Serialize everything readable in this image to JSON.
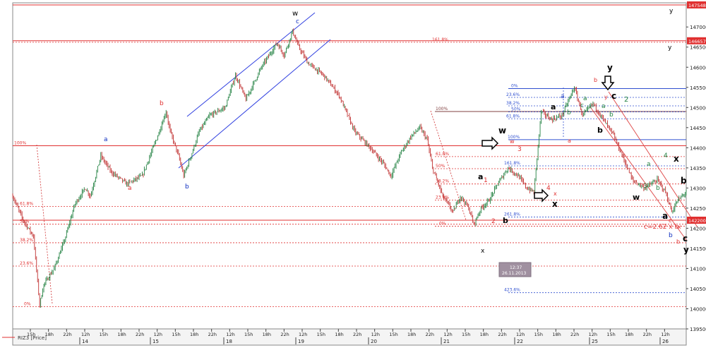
{
  "window": {
    "instrument_label": "RIZ3 [Price]"
  },
  "chart_data": {
    "type": "candlestick",
    "title": "",
    "xlabel": "",
    "ylabel": "",
    "ylim": [
      139500,
      147600
    ],
    "grid": false,
    "legend": "bottom-left",
    "price_axis_ticks": [
      139500,
      140000,
      140500,
      141000,
      141500,
      142000,
      142500,
      143000,
      143500,
      144000,
      144500,
      145000,
      145500,
      146000,
      146500,
      147000
    ],
    "highlighted_prices": [
      {
        "label": "147548",
        "value": 147548,
        "color": "#e03030"
      },
      {
        "label": "146657",
        "value": 146657,
        "color": "#e03030"
      },
      {
        "label": "142200",
        "value": 142200,
        "color": "#e03030"
      }
    ],
    "time_axis_hours": [
      "15h",
      "18h",
      "22h",
      "12h",
      "15h",
      "18h",
      "22h",
      "12h",
      "15h",
      "18h",
      "22h",
      "12h",
      "15h",
      "18h",
      "22h",
      "12h",
      "15h",
      "18h",
      "22h",
      "12h",
      "15h",
      "18h",
      "22h",
      "12h",
      "15h",
      "18h",
      "22h",
      "12h",
      "15h",
      "18h",
      "22h",
      "12h",
      "15h",
      "18h",
      "22h",
      "12h"
    ],
    "time_axis_days": [
      "14",
      "15",
      "18",
      "19",
      "20",
      "21",
      "22",
      "25",
      "26"
    ],
    "cursor_box": {
      "time": "12:37",
      "date": "26.11.2013"
    },
    "price_path": [
      [
        0,
        142800
      ],
      [
        10,
        142200
      ],
      [
        20,
        141800
      ],
      [
        26,
        140100
      ],
      [
        30,
        140600
      ],
      [
        40,
        141000
      ],
      [
        50,
        141700
      ],
      [
        60,
        142600
      ],
      [
        70,
        143000
      ],
      [
        75,
        142800
      ],
      [
        85,
        143800
      ],
      [
        95,
        143400
      ],
      [
        110,
        143100
      ],
      [
        125,
        143300
      ],
      [
        140,
        144300
      ],
      [
        148,
        144900
      ],
      [
        152,
        144400
      ],
      [
        160,
        143800
      ],
      [
        165,
        143300
      ],
      [
        172,
        143800
      ],
      [
        180,
        144400
      ],
      [
        190,
        144800
      ],
      [
        205,
        145000
      ],
      [
        215,
        145800
      ],
      [
        225,
        145200
      ],
      [
        240,
        146000
      ],
      [
        255,
        146600
      ],
      [
        262,
        146300
      ],
      [
        270,
        146900
      ],
      [
        276,
        146500
      ],
      [
        285,
        146100
      ],
      [
        300,
        145800
      ],
      [
        315,
        145300
      ],
      [
        330,
        144400
      ],
      [
        345,
        144000
      ],
      [
        358,
        143600
      ],
      [
        365,
        143300
      ],
      [
        375,
        143900
      ],
      [
        385,
        144300
      ],
      [
        393,
        144500
      ],
      [
        400,
        144200
      ],
      [
        405,
        143500
      ],
      [
        415,
        142800
      ],
      [
        425,
        142400
      ],
      [
        432,
        142800
      ],
      [
        440,
        142500
      ],
      [
        445,
        142100
      ],
      [
        452,
        142500
      ],
      [
        460,
        142700
      ],
      [
        468,
        143100
      ],
      [
        478,
        143500
      ],
      [
        488,
        143300
      ],
      [
        496,
        143000
      ],
      [
        503,
        142900
      ],
      [
        510,
        144900
      ],
      [
        520,
        144700
      ],
      [
        530,
        144800
      ],
      [
        542,
        145500
      ],
      [
        550,
        144800
      ],
      [
        560,
        145100
      ],
      [
        570,
        144700
      ],
      [
        580,
        144300
      ],
      [
        590,
        143700
      ],
      [
        598,
        143200
      ],
      [
        610,
        143000
      ],
      [
        622,
        143200
      ],
      [
        630,
        142900
      ],
      [
        636,
        142400
      ],
      [
        642,
        142700
      ],
      [
        650,
        142900
      ]
    ],
    "fib_levels": [
      {
        "label": "161.8%",
        "value": 146620,
        "color": "#e03030"
      },
      {
        "label": "100%",
        "value": 144050,
        "color": "#e03030"
      },
      {
        "label": "61.8%",
        "value": 142540,
        "color": "#e03030"
      },
      {
        "label": "50%",
        "value": 142100,
        "color": "#e03030"
      },
      {
        "label": "38.2%",
        "value": 141640,
        "color": "#e03030"
      },
      {
        "label": "23.6%",
        "value": 141060,
        "color": "#e03030"
      },
      {
        "label": "0%",
        "value": 140050,
        "color": "#e03030"
      },
      {
        "label": "100%",
        "value": 144900,
        "color": "#804040"
      },
      {
        "label": "61.8%",
        "value": 143780,
        "color": "#e03030"
      },
      {
        "label": "50%",
        "value": 143480,
        "color": "#e03030"
      },
      {
        "label": "38.2%",
        "value": 143100,
        "color": "#e03030"
      },
      {
        "label": "23.6%",
        "value": 142700,
        "color": "#e03030"
      },
      {
        "label": "0%",
        "value": 142050,
        "color": "#e03030"
      },
      {
        "label": "0%",
        "value": 145470,
        "color": "#3050d0"
      },
      {
        "label": "23.6%",
        "value": 145250,
        "color": "#3050d0"
      },
      {
        "label": "38.2%",
        "value": 145040,
        "color": "#3050d0"
      },
      {
        "label": "50%",
        "value": 144890,
        "color": "#3050d0"
      },
      {
        "label": "61.8%",
        "value": 144720,
        "color": "#3050d0"
      },
      {
        "label": "100%",
        "value": 144200,
        "color": "#3050d0"
      },
      {
        "label": "161.8%",
        "value": 143550,
        "color": "#3050d0"
      },
      {
        "label": "261.8%",
        "value": 142280,
        "color": "#3050d0"
      },
      {
        "label": "423.6%",
        "value": 140400,
        "color": "#3050d0"
      }
    ],
    "annotations": [
      {
        "text": "w",
        "color": "#000000"
      },
      {
        "text": "c",
        "color": "#1030c0"
      },
      {
        "text": "b",
        "color": "#e03030"
      },
      {
        "text": "a",
        "color": "#1030c0"
      },
      {
        "text": "a",
        "color": "#e03030"
      },
      {
        "text": "b",
        "color": "#1030c0"
      },
      {
        "text": "x",
        "color": "#000000"
      },
      {
        "text": "1",
        "color": "#e03030"
      },
      {
        "text": "2",
        "color": "#e03030"
      },
      {
        "text": "3",
        "color": "#e03030"
      },
      {
        "text": "4",
        "color": "#e03030"
      },
      {
        "text": "a",
        "color": "#000000"
      },
      {
        "text": "b",
        "color": "#000000"
      },
      {
        "text": "w",
        "color": "#000000"
      },
      {
        "text": "w",
        "color": "#e03030"
      },
      {
        "text": "x",
        "color": "#000000"
      },
      {
        "text": "x",
        "color": "#e03030"
      },
      {
        "text": "a",
        "color": "#000000"
      },
      {
        "text": "b",
        "color": "#000000"
      },
      {
        "text": "a",
        "color": "#e03030"
      },
      {
        "text": "a",
        "color": "#1030c0"
      },
      {
        "text": "a",
        "color": "#208040"
      },
      {
        "text": "b",
        "color": "#208040"
      },
      {
        "text": "c",
        "color": "#208040"
      },
      {
        "text": "y",
        "color": "#000000"
      },
      {
        "text": "b",
        "color": "#e03030"
      },
      {
        "text": "c",
        "color": "#000000"
      },
      {
        "text": "y",
        "color": "#e03030"
      },
      {
        "text": "2",
        "color": "#208040"
      },
      {
        "text": "a",
        "color": "#208040"
      },
      {
        "text": "b",
        "color": "#208040"
      },
      {
        "text": "3",
        "color": "#208040"
      },
      {
        "text": "4",
        "color": "#208040"
      },
      {
        "text": "a",
        "color": "#208040"
      },
      {
        "text": "b",
        "color": "#208040"
      },
      {
        "text": "x",
        "color": "#000000"
      },
      {
        "text": "w",
        "color": "#000000"
      },
      {
        "text": "b",
        "color": "#000000"
      },
      {
        "text": "a",
        "color": "#000000"
      },
      {
        "text": "c",
        "color": "#e03030"
      },
      {
        "text": "x",
        "color": "#e03030"
      },
      {
        "text": "b",
        "color": "#e03030"
      },
      {
        "text": "c=2.62 x b",
        "color": "#e03030"
      },
      {
        "text": "b",
        "color": "#1030c0"
      },
      {
        "text": "c",
        "color": "#000000"
      },
      {
        "text": "y",
        "color": "#000000"
      },
      {
        "text": "y",
        "color": "#000000"
      },
      {
        "text": "y",
        "color": "#000000"
      }
    ],
    "colors": {
      "candle_up": "#208040",
      "candle_down": "#c03030",
      "fib_red": "#e03030",
      "fib_blue": "#3050d0",
      "channel": "#3040e0",
      "down_channel": "#e05050",
      "cursor_box_bg": "#a090a0"
    }
  }
}
